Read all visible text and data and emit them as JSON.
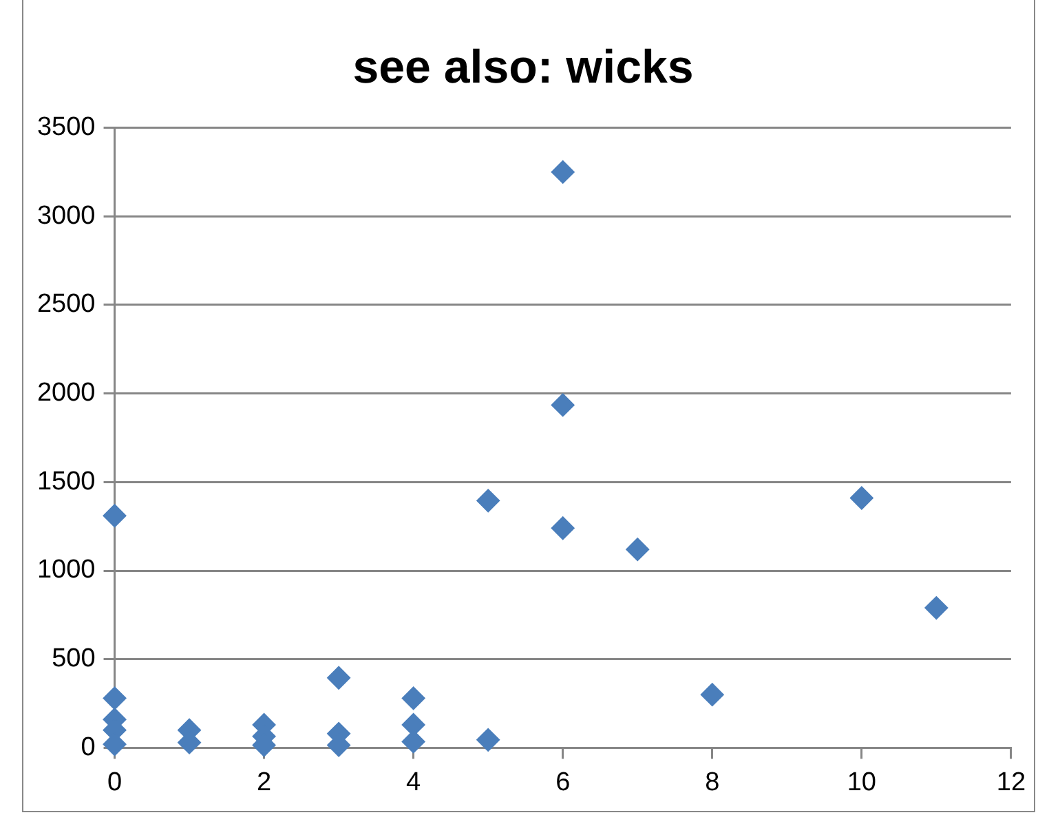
{
  "chart_data": {
    "type": "scatter",
    "title": "see also: wicks",
    "x": [
      0,
      0,
      0,
      0,
      0,
      1,
      1,
      2,
      2,
      2,
      3,
      3,
      3,
      4,
      4,
      4,
      5,
      5,
      6,
      6,
      6,
      7,
      8,
      10,
      11
    ],
    "series": [
      {
        "color": "#4a7ebb",
        "values": [
          1310,
          280,
          160,
          100,
          20,
          100,
          30,
          130,
          65,
          15,
          395,
          80,
          15,
          280,
          130,
          35,
          1395,
          45,
          3250,
          1935,
          1240,
          1120,
          300,
          1410,
          790
        ]
      }
    ],
    "xlim": [
      0,
      12
    ],
    "xticks": [
      0,
      2,
      4,
      6,
      8,
      10,
      12
    ],
    "ylim": [
      0,
      3500
    ],
    "yticks": [
      0,
      500,
      1000,
      1500,
      2000,
      2500,
      3000,
      3500
    ],
    "grid": "y",
    "legend": false,
    "marker": "diamond"
  }
}
